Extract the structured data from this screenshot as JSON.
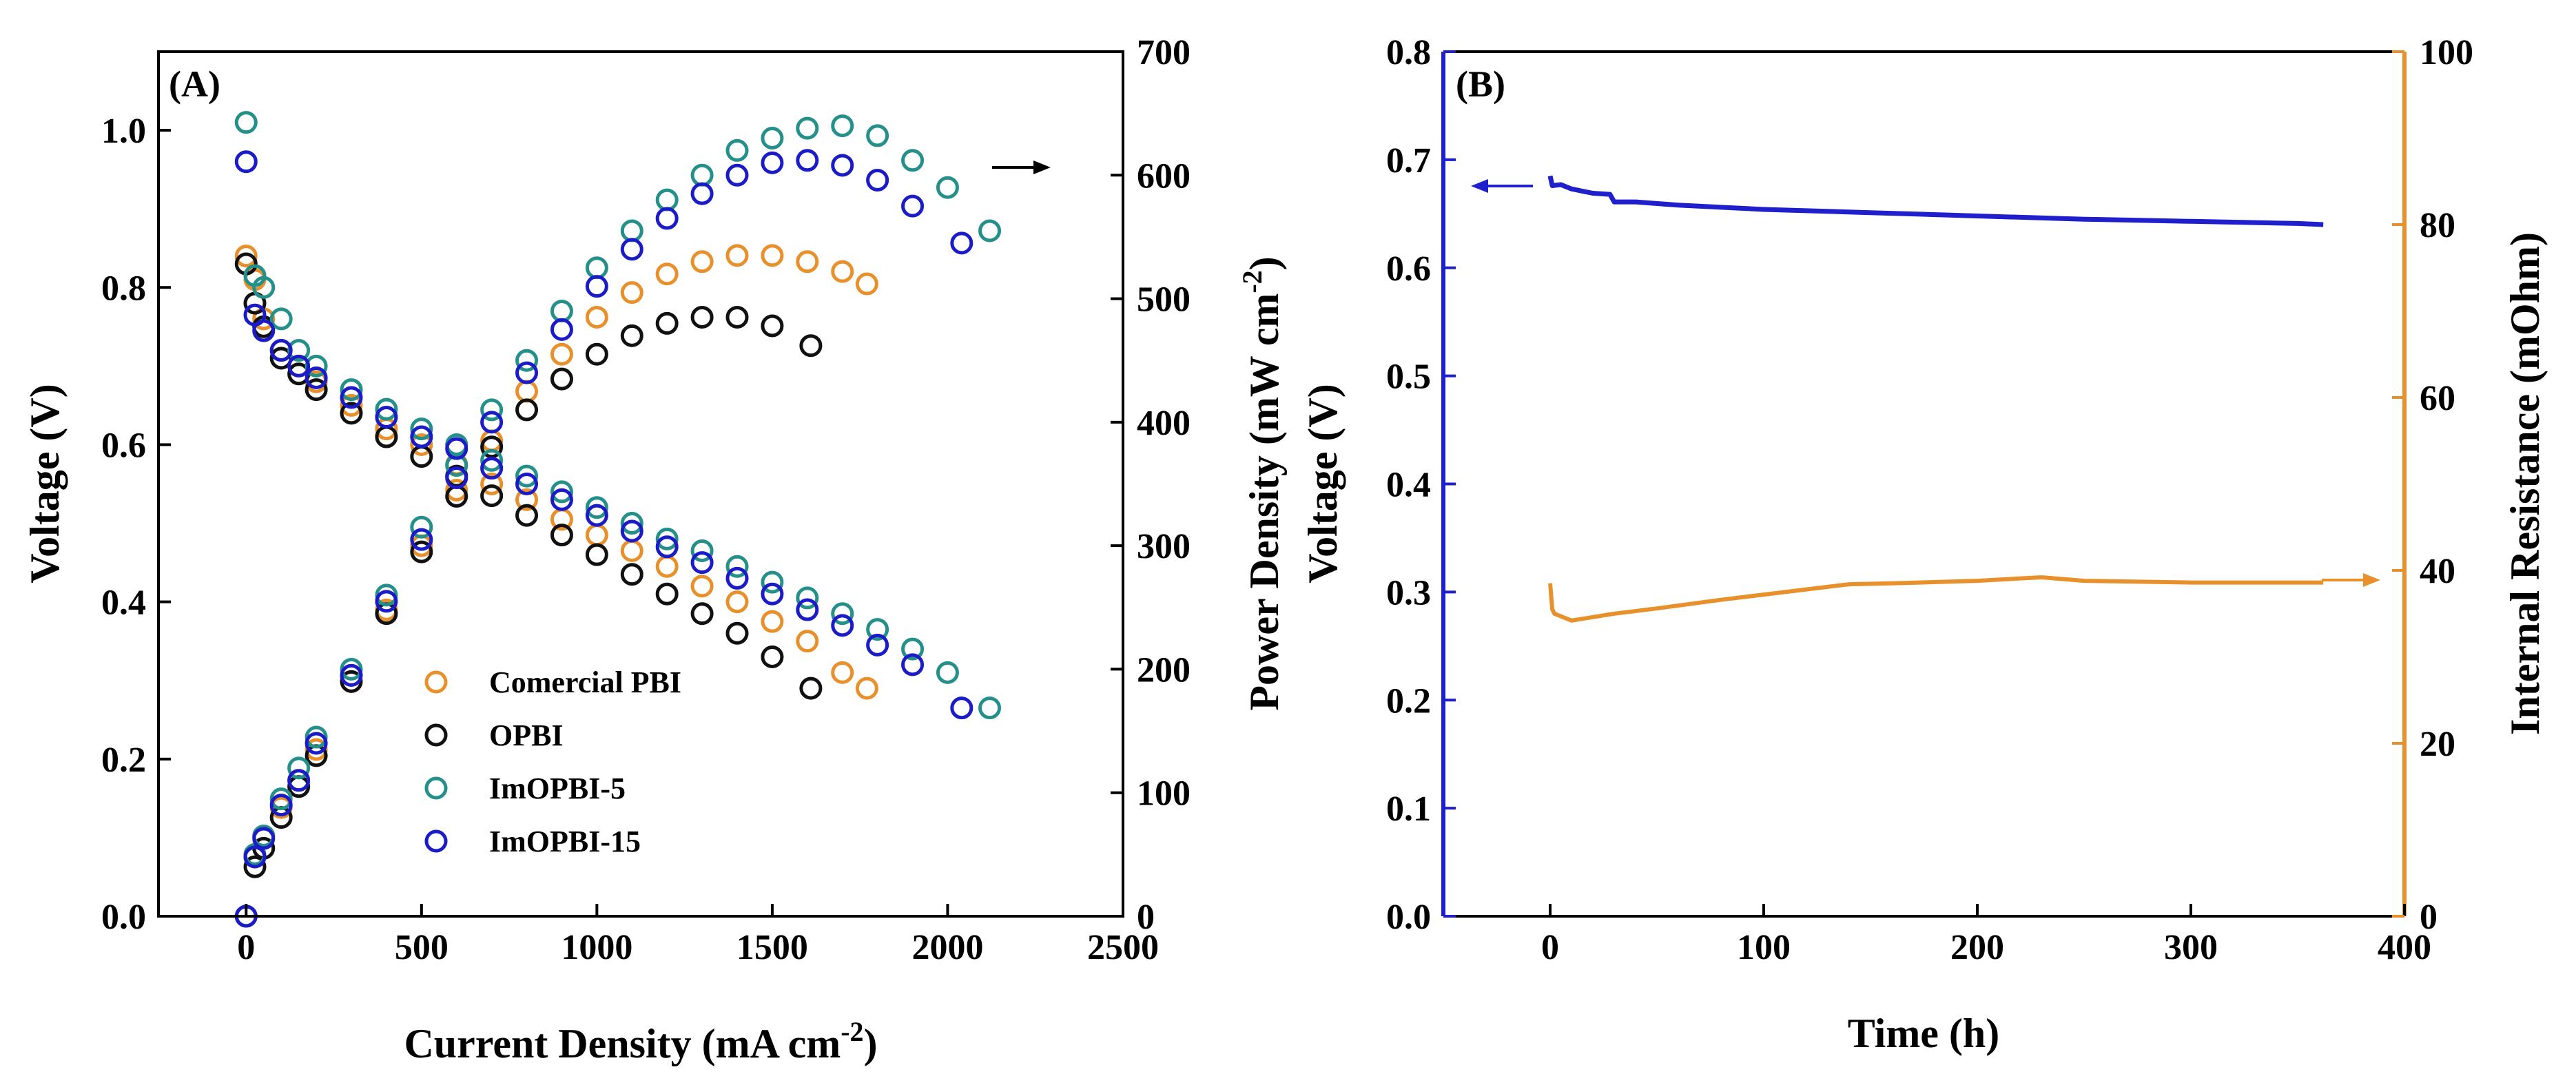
{
  "colors": {
    "commercial": "#E8912C",
    "opbi": "#111111",
    "imopbi5": "#25908A",
    "imopbi15": "#1B1BC8",
    "voltage_line": "#1F1FCC",
    "resistance_line": "#E8912C",
    "blue_axis": "#1F1FCC",
    "orange_axis": "#E8912C"
  },
  "chart_data": [
    {
      "type": "scatter",
      "panel_label": "(A)",
      "xlabel": "Current Density (mA cm",
      "xlabel_sup": "-2",
      "xlabel_close": ")",
      "ylabel": "Voltage (V)",
      "y2label": "Power Density (mW cm",
      "y2label_sup": "-2",
      "y2label_close": ")",
      "xlim": [
        -250,
        2500
      ],
      "ylim": [
        0.0,
        1.1
      ],
      "y2lim": [
        0,
        700
      ],
      "xticks": [
        "0",
        "500",
        "1000",
        "1500",
        "2000",
        "2500"
      ],
      "yticks": [
        "0.0",
        "0.2",
        "0.4",
        "0.6",
        "0.8",
        "1.0"
      ],
      "y2ticks": [
        "0",
        "100",
        "200",
        "300",
        "400",
        "500",
        "600",
        "700"
      ],
      "arrow_annotation": "power-density-axis",
      "legend": [
        "Comercial PBI",
        "OPBI",
        "ImOPBI-5",
        "ImOPBI-15"
      ],
      "series": [
        {
          "name": "Comercial PBI",
          "color_key": "commercial",
          "voltage": [
            [
              0,
              0.84
            ],
            [
              25,
              0.81
            ],
            [
              50,
              0.76
            ],
            [
              100,
              0.72
            ],
            [
              150,
              0.7
            ],
            [
              200,
              0.68
            ],
            [
              300,
              0.65
            ],
            [
              400,
              0.62
            ],
            [
              500,
              0.6
            ],
            [
              600,
              0.575
            ],
            [
              700,
              0.55
            ],
            [
              800,
              0.53
            ],
            [
              900,
              0.505
            ],
            [
              1000,
              0.485
            ],
            [
              1100,
              0.465
            ],
            [
              1200,
              0.445
            ],
            [
              1300,
              0.42
            ],
            [
              1400,
              0.4
            ],
            [
              1500,
              0.375
            ],
            [
              1600,
              0.35
            ],
            [
              1700,
              0.31
            ],
            [
              1770,
              0.29
            ]
          ],
          "power": [
            [
              0,
              0
            ],
            [
              25,
              48
            ],
            [
              50,
              65
            ],
            [
              100,
              88
            ],
            [
              150,
              110
            ],
            [
              200,
              135
            ],
            [
              300,
              195
            ],
            [
              400,
              248
            ],
            [
              500,
              300
            ],
            [
              600,
              345
            ],
            [
              700,
              385
            ],
            [
              800,
              425
            ],
            [
              900,
              455
            ],
            [
              1000,
              485
            ],
            [
              1100,
              505
            ],
            [
              1200,
              520
            ],
            [
              1300,
              530
            ],
            [
              1400,
              535
            ],
            [
              1500,
              535
            ],
            [
              1600,
              530
            ],
            [
              1700,
              522
            ],
            [
              1770,
              512
            ]
          ]
        },
        {
          "name": "OPBI",
          "color_key": "opbi",
          "voltage": [
            [
              0,
              0.83
            ],
            [
              25,
              0.78
            ],
            [
              50,
              0.75
            ],
            [
              100,
              0.71
            ],
            [
              150,
              0.69
            ],
            [
              200,
              0.67
            ],
            [
              300,
              0.64
            ],
            [
              400,
              0.61
            ],
            [
              500,
              0.585
            ],
            [
              600,
              0.56
            ],
            [
              700,
              0.535
            ],
            [
              800,
              0.51
            ],
            [
              900,
              0.485
            ],
            [
              1000,
              0.46
            ],
            [
              1100,
              0.435
            ],
            [
              1200,
              0.41
            ],
            [
              1300,
              0.385
            ],
            [
              1400,
              0.36
            ],
            [
              1500,
              0.33
            ],
            [
              1610,
              0.29
            ]
          ],
          "power": [
            [
              0,
              0
            ],
            [
              25,
              40
            ],
            [
              50,
              55
            ],
            [
              100,
              80
            ],
            [
              150,
              105
            ],
            [
              200,
              130
            ],
            [
              300,
              190
            ],
            [
              400,
              245
            ],
            [
              500,
              295
            ],
            [
              600,
              340
            ],
            [
              700,
              380
            ],
            [
              800,
              410
            ],
            [
              900,
              435
            ],
            [
              1000,
              455
            ],
            [
              1100,
              470
            ],
            [
              1200,
              480
            ],
            [
              1300,
              485
            ],
            [
              1400,
              485
            ],
            [
              1500,
              478
            ],
            [
              1610,
              462
            ]
          ]
        },
        {
          "name": "ImOPBI-5",
          "color_key": "imopbi5",
          "voltage": [
            [
              0,
              1.01
            ],
            [
              25,
              0.815
            ],
            [
              50,
              0.8
            ],
            [
              100,
              0.76
            ],
            [
              150,
              0.72
            ],
            [
              200,
              0.7
            ],
            [
              300,
              0.67
            ],
            [
              400,
              0.645
            ],
            [
              500,
              0.62
            ],
            [
              600,
              0.6
            ],
            [
              700,
              0.58
            ],
            [
              800,
              0.56
            ],
            [
              900,
              0.54
            ],
            [
              1000,
              0.52
            ],
            [
              1100,
              0.5
            ],
            [
              1200,
              0.48
            ],
            [
              1300,
              0.465
            ],
            [
              1400,
              0.445
            ],
            [
              1500,
              0.425
            ],
            [
              1600,
              0.405
            ],
            [
              1700,
              0.385
            ],
            [
              1800,
              0.365
            ],
            [
              1900,
              0.34
            ],
            [
              2000,
              0.31
            ],
            [
              2120,
              0.265
            ]
          ],
          "power": [
            [
              0,
              0
            ],
            [
              25,
              50
            ],
            [
              50,
              65
            ],
            [
              100,
              95
            ],
            [
              150,
              120
            ],
            [
              200,
              145
            ],
            [
              300,
              200
            ],
            [
              400,
              260
            ],
            [
              500,
              315
            ],
            [
              600,
              365
            ],
            [
              700,
              410
            ],
            [
              800,
              450
            ],
            [
              900,
              490
            ],
            [
              1000,
              525
            ],
            [
              1100,
              555
            ],
            [
              1200,
              580
            ],
            [
              1300,
              600
            ],
            [
              1400,
              620
            ],
            [
              1500,
              630
            ],
            [
              1600,
              638
            ],
            [
              1700,
              640
            ],
            [
              1800,
              632
            ],
            [
              1900,
              612
            ],
            [
              2000,
              590
            ],
            [
              2120,
              555
            ]
          ]
        },
        {
          "name": "ImOPBI-15",
          "color_key": "imopbi15",
          "voltage": [
            [
              0,
              0.96
            ],
            [
              25,
              0.765
            ],
            [
              50,
              0.745
            ],
            [
              100,
              0.72
            ],
            [
              150,
              0.7
            ],
            [
              200,
              0.685
            ],
            [
              300,
              0.66
            ],
            [
              400,
              0.635
            ],
            [
              500,
              0.61
            ],
            [
              600,
              0.595
            ],
            [
              700,
              0.57
            ],
            [
              800,
              0.55
            ],
            [
              900,
              0.53
            ],
            [
              1000,
              0.51
            ],
            [
              1100,
              0.49
            ],
            [
              1200,
              0.47
            ],
            [
              1300,
              0.45
            ],
            [
              1400,
              0.43
            ],
            [
              1500,
              0.41
            ],
            [
              1600,
              0.39
            ],
            [
              1700,
              0.37
            ],
            [
              1800,
              0.345
            ],
            [
              1900,
              0.32
            ],
            [
              2040,
              0.265
            ]
          ],
          "power": [
            [
              0,
              0
            ],
            [
              25,
              48
            ],
            [
              50,
              63
            ],
            [
              100,
              90
            ],
            [
              150,
              110
            ],
            [
              200,
              140
            ],
            [
              300,
              195
            ],
            [
              400,
              255
            ],
            [
              500,
              305
            ],
            [
              600,
              355
            ],
            [
              700,
              400
            ],
            [
              800,
              440
            ],
            [
              900,
              475
            ],
            [
              1000,
              510
            ],
            [
              1100,
              540
            ],
            [
              1200,
              565
            ],
            [
              1300,
              585
            ],
            [
              1400,
              600
            ],
            [
              1500,
              610
            ],
            [
              1600,
              612
            ],
            [
              1700,
              608
            ],
            [
              1800,
              596
            ],
            [
              1900,
              575
            ],
            [
              2040,
              545
            ]
          ]
        }
      ]
    },
    {
      "type": "line",
      "panel_label": "(B)",
      "xlabel": "Time (h)",
      "ylabel": "Voltage (V)",
      "y2label": "Internal Resistance (mOhm)",
      "xlim": [
        -50,
        400
      ],
      "ylim": [
        0.0,
        0.8
      ],
      "y2lim": [
        0,
        100
      ],
      "xticks": [
        "0",
        "100",
        "200",
        "300",
        "400"
      ],
      "yticks": [
        "0.0",
        "0.1",
        "0.2",
        "0.3",
        "0.4",
        "0.5",
        "0.6",
        "0.7",
        "0.8"
      ],
      "y2ticks": [
        "0",
        "20",
        "40",
        "60",
        "80",
        "100"
      ],
      "series": [
        {
          "name": "Voltage",
          "color_key": "voltage_line",
          "points": [
            [
              0,
              0.685
            ],
            [
              1,
              0.676
            ],
            [
              5,
              0.677
            ],
            [
              10,
              0.673
            ],
            [
              15,
              0.671
            ],
            [
              20,
              0.669
            ],
            [
              28,
              0.668
            ],
            [
              30,
              0.661
            ],
            [
              40,
              0.661
            ],
            [
              60,
              0.658
            ],
            [
              80,
              0.656
            ],
            [
              100,
              0.654
            ],
            [
              150,
              0.651
            ],
            [
              200,
              0.648
            ],
            [
              250,
              0.645
            ],
            [
              300,
              0.643
            ],
            [
              350,
              0.641
            ],
            [
              362,
              0.64
            ]
          ]
        },
        {
          "name": "Internal Resistance",
          "color_key": "resistance_line",
          "points": [
            [
              0,
              38.5
            ],
            [
              1,
              35.5
            ],
            [
              2,
              35.0
            ],
            [
              10,
              34.2
            ],
            [
              20,
              34.6
            ],
            [
              30,
              35.0
            ],
            [
              50,
              35.6
            ],
            [
              80,
              36.6
            ],
            [
              100,
              37.2
            ],
            [
              120,
              37.8
            ],
            [
              140,
              38.4
            ],
            [
              160,
              38.5
            ],
            [
              200,
              38.8
            ],
            [
              230,
              39.2
            ],
            [
              250,
              38.8
            ],
            [
              300,
              38.6
            ],
            [
              362,
              38.6
            ]
          ]
        }
      ]
    }
  ]
}
